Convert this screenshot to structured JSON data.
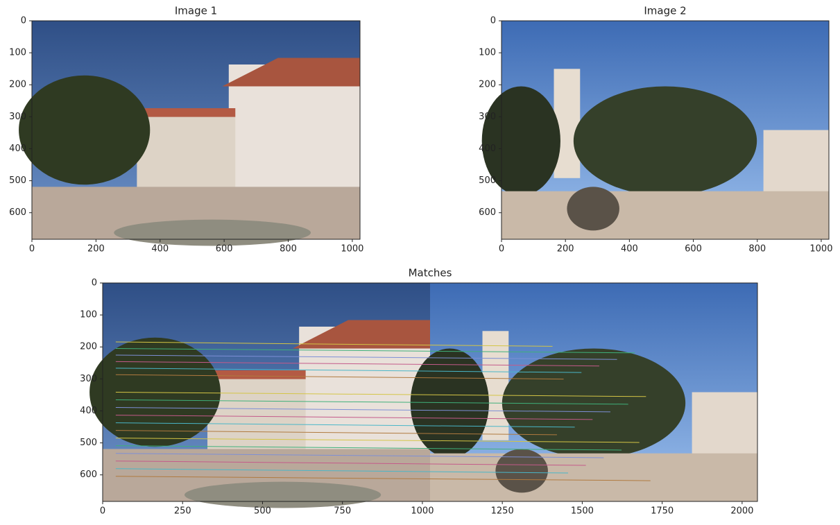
{
  "chart_data": [
    {
      "type": "image",
      "title": "Image 1",
      "scene": "left",
      "xlim": [
        0,
        1024
      ],
      "ylim": [
        683,
        0
      ],
      "xticks": [
        0,
        200,
        400,
        600,
        800,
        1000
      ],
      "yticks": [
        0,
        100,
        200,
        300,
        400,
        500,
        600
      ]
    },
    {
      "type": "image",
      "title": "Image 2",
      "scene": "right",
      "xlim": [
        0,
        1024
      ],
      "ylim": [
        683,
        0
      ],
      "xticks": [
        0,
        200,
        400,
        600,
        800,
        1000
      ],
      "yticks": [
        0,
        100,
        200,
        300,
        400,
        500,
        600
      ]
    },
    {
      "type": "image",
      "title": "Matches",
      "scene": "both",
      "xlim": [
        0,
        2048
      ],
      "ylim": [
        683,
        0
      ],
      "xticks": [
        0,
        250,
        500,
        750,
        1000,
        1250,
        1500,
        1750,
        2000
      ],
      "yticks": [
        0,
        100,
        200,
        300,
        400,
        500,
        600
      ]
    }
  ]
}
